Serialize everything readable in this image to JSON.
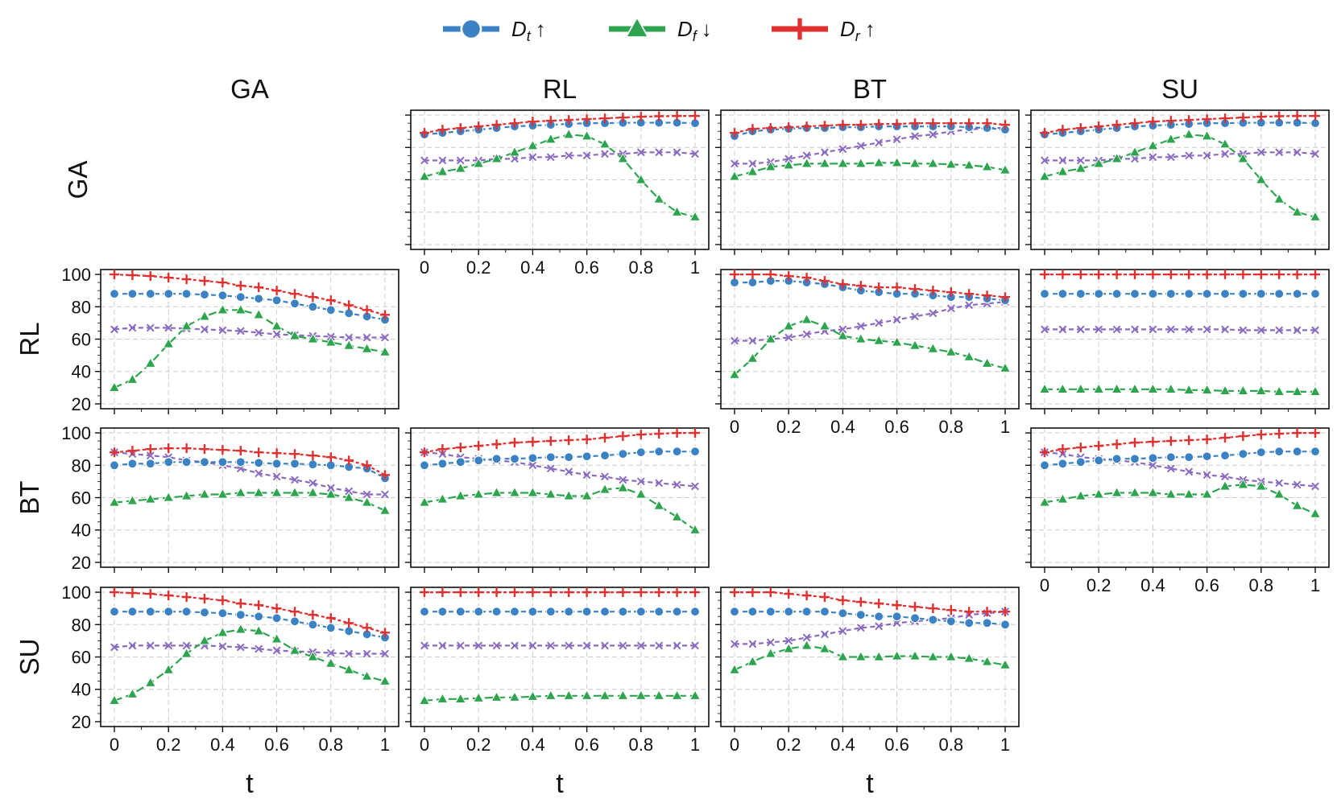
{
  "chart_data": {
    "type": "line",
    "legend": {
      "placement": "top-center",
      "entries": [
        {
          "name": "D_t",
          "base": "D",
          "sub": "t",
          "arrow": "↑",
          "color": "#3b82c4",
          "marker": "circle"
        },
        {
          "name": "D_f",
          "base": "D",
          "sub": "f",
          "arrow": "↓",
          "color": "#2ea44f",
          "marker": "triangle"
        },
        {
          "name": "D_r",
          "base": "D",
          "sub": "r",
          "arrow": "↑",
          "color": "#e03030",
          "marker": "plus"
        }
      ]
    },
    "extra_series": {
      "name": "unlabeled",
      "color": "#8a6bbf",
      "marker": "x"
    },
    "columns": [
      "GA",
      "RL",
      "BT",
      "SU"
    ],
    "rows": [
      "GA",
      "RL",
      "BT",
      "SU"
    ],
    "xlabel": "t",
    "x": [
      0,
      0.0667,
      0.1333,
      0.2,
      0.2667,
      0.3333,
      0.4,
      0.4667,
      0.5333,
      0.6,
      0.6667,
      0.7333,
      0.8,
      0.8667,
      0.9333,
      1
    ],
    "xticks": [
      0,
      0.2,
      0.4,
      0.6,
      0.8,
      1
    ],
    "xtick_labels": [
      "0",
      "0.2",
      "0.4",
      "0.6",
      "0.8",
      "1"
    ],
    "ylim": [
      20,
      100
    ],
    "yticks": [
      20,
      40,
      60,
      80,
      100
    ],
    "ytick_labels": [
      "20",
      "40",
      "60",
      "80",
      "100"
    ],
    "grid": true,
    "panels": [
      {
        "row": 0,
        "col": 1,
        "D_t": [
          88,
          89,
          90,
          91,
          92,
          93,
          93.5,
          94,
          94.5,
          95,
          95,
          95.2,
          95.3,
          95.3,
          95.3,
          95
        ],
        "D_f": [
          62,
          65,
          67,
          70,
          73,
          77,
          81,
          85,
          88,
          87,
          82,
          73,
          60,
          48,
          40,
          37
        ],
        "D_r": [
          89,
          91,
          92,
          93,
          94,
          95,
          96,
          96.5,
          97,
          97.5,
          98,
          98.5,
          99,
          99.3,
          99.5,
          99.5
        ],
        "X": [
          72,
          72,
          72,
          72,
          73,
          73,
          74,
          74,
          75,
          75,
          76,
          76,
          77,
          77,
          77,
          76
        ]
      },
      {
        "row": 0,
        "col": 2,
        "D_t": [
          87,
          90,
          91,
          91.5,
          92,
          92,
          92.5,
          92.5,
          93,
          93,
          93,
          93,
          93,
          92.5,
          92,
          91
        ],
        "D_f": [
          62,
          65,
          68,
          69,
          70,
          70,
          70,
          70,
          70.5,
          70.5,
          70,
          70,
          69.5,
          69,
          68,
          66
        ],
        "D_r": [
          89,
          91.5,
          92,
          92.5,
          93,
          93.5,
          94,
          94,
          94.5,
          94.5,
          95,
          95,
          95,
          95,
          95,
          94
        ],
        "X": [
          70,
          70,
          71,
          73,
          75,
          77,
          79,
          81,
          83,
          85,
          87,
          88,
          90,
          91,
          92,
          92
        ]
      },
      {
        "row": 0,
        "col": 3,
        "D_t": [
          88,
          89,
          90,
          91,
          92,
          93,
          93.5,
          94,
          94.5,
          95,
          95,
          95.2,
          95.3,
          95.3,
          95.3,
          95
        ],
        "D_f": [
          62,
          65,
          67,
          70,
          73,
          77,
          81,
          85,
          88,
          87,
          82,
          73,
          60,
          48,
          40,
          37
        ],
        "D_r": [
          89,
          91,
          92,
          93,
          94,
          95,
          96,
          96.5,
          97,
          97.5,
          98,
          98.5,
          99,
          99.3,
          99.5,
          99.5
        ],
        "X": [
          72,
          72,
          72,
          72,
          73,
          73,
          74,
          74,
          75,
          75,
          76,
          76,
          77,
          77,
          77,
          76
        ]
      },
      {
        "row": 1,
        "col": 0,
        "D_t": [
          88,
          88,
          88,
          88,
          88,
          87.5,
          87,
          86,
          85,
          84,
          82,
          80,
          78,
          76,
          74,
          72
        ],
        "D_f": [
          30,
          35,
          45,
          57,
          68,
          74,
          78,
          78,
          75,
          68,
          62,
          60,
          58,
          56,
          54,
          52
        ],
        "D_r": [
          100,
          99.5,
          99,
          98,
          97,
          96,
          95,
          93,
          92,
          90,
          88,
          86,
          84,
          81,
          78,
          75
        ],
        "X": [
          66,
          67,
          67,
          67,
          66.5,
          66,
          65.5,
          65,
          64,
          63,
          62.5,
          62,
          61.5,
          61,
          61,
          61
        ]
      },
      {
        "row": 1,
        "col": 2,
        "D_t": [
          95,
          95,
          96,
          96,
          95,
          94,
          92,
          90,
          89,
          88,
          88,
          87,
          86,
          86,
          85,
          84
        ],
        "D_f": [
          38,
          48,
          60,
          68,
          72,
          68,
          62,
          60,
          59,
          58,
          56,
          54,
          52,
          49,
          45,
          42
        ],
        "D_r": [
          100,
          100,
          100,
          99,
          98,
          96,
          94,
          93,
          92,
          92,
          91,
          90,
          89,
          88,
          87,
          86
        ],
        "X": [
          59,
          59,
          60,
          61,
          63,
          65,
          66,
          68,
          70,
          72,
          74,
          76,
          79,
          81,
          82,
          83
        ]
      },
      {
        "row": 1,
        "col": 3,
        "D_t": [
          88,
          88,
          88,
          88,
          88,
          88,
          88,
          88,
          88,
          88,
          88,
          88,
          88,
          88,
          88,
          88
        ],
        "D_f": [
          29,
          29,
          29,
          29,
          29,
          29,
          29,
          29,
          28.5,
          28.5,
          28,
          28,
          28,
          27.5,
          27.5,
          27.5
        ],
        "D_r": [
          100,
          100,
          100,
          100,
          100,
          100,
          100,
          100,
          100,
          100,
          100,
          100,
          100,
          100,
          100,
          100
        ],
        "X": [
          66,
          66,
          66,
          66,
          66,
          66,
          66,
          66,
          66,
          66,
          66,
          65.5,
          65.5,
          65.5,
          65.5,
          65.5
        ]
      },
      {
        "row": 2,
        "col": 0,
        "D_t": [
          80,
          81,
          81,
          82,
          82,
          82,
          82,
          82,
          81.5,
          81,
          81,
          80.5,
          80,
          79,
          78,
          72
        ],
        "D_f": [
          57,
          58,
          59,
          60,
          61,
          62,
          62,
          63,
          63,
          63,
          63,
          63,
          62,
          60,
          57,
          52
        ],
        "D_r": [
          88,
          89,
          90,
          90.5,
          90.5,
          90,
          89.5,
          89,
          88,
          87.5,
          87,
          86,
          85,
          83,
          80,
          74
        ],
        "X": [
          88,
          87,
          86,
          85,
          83,
          82,
          80,
          78,
          75,
          73,
          71,
          69,
          66,
          64,
          62,
          62
        ]
      },
      {
        "row": 2,
        "col": 1,
        "D_t": [
          80,
          81,
          82,
          83,
          84,
          84,
          84.5,
          85,
          85,
          85.5,
          86,
          87,
          88,
          88.5,
          88.5,
          88.5
        ],
        "D_f": [
          57,
          59,
          61,
          62,
          63,
          63,
          63,
          62,
          61,
          61,
          65,
          66,
          62,
          55,
          48,
          40
        ],
        "D_r": [
          88,
          90,
          91,
          92,
          93,
          94,
          94.5,
          95,
          95.5,
          96,
          97,
          98,
          99,
          99.5,
          100,
          100
        ],
        "X": [
          88,
          87,
          85,
          84,
          83,
          82,
          80,
          78,
          76,
          74,
          73,
          71,
          70,
          69,
          68,
          67
        ]
      },
      {
        "row": 2,
        "col": 3,
        "D_t": [
          80,
          81,
          82,
          83,
          84,
          84,
          84.5,
          85,
          85,
          85.5,
          86,
          87,
          88,
          88.5,
          88.5,
          88.5
        ],
        "D_f": [
          57,
          59,
          61,
          62,
          63,
          63,
          63,
          62,
          62,
          62,
          67,
          68,
          67,
          62,
          55,
          50
        ],
        "D_r": [
          88,
          90,
          91,
          92,
          93,
          94,
          94.5,
          95,
          95.5,
          96,
          97,
          98,
          99,
          99.5,
          100,
          100
        ],
        "X": [
          88,
          87,
          85,
          84,
          83,
          82,
          80,
          78,
          76,
          74,
          73,
          71,
          70,
          69,
          68,
          67
        ]
      },
      {
        "row": 3,
        "col": 0,
        "D_t": [
          88,
          88,
          88,
          88,
          88,
          87.5,
          87,
          86,
          85,
          84,
          82,
          80,
          78,
          76,
          74,
          72
        ],
        "D_f": [
          33,
          37,
          44,
          52,
          62,
          70,
          75,
          77,
          76,
          71,
          64,
          60,
          56,
          52,
          48,
          45
        ],
        "D_r": [
          100,
          99.5,
          99,
          98,
          97,
          96,
          95,
          93,
          92,
          90,
          88,
          86,
          84,
          81,
          78,
          75
        ],
        "X": [
          66,
          67,
          67,
          67,
          67,
          67,
          66.5,
          66,
          65,
          64,
          63.5,
          63,
          62.5,
          62,
          62,
          62
        ]
      },
      {
        "row": 3,
        "col": 1,
        "D_t": [
          88,
          88,
          88,
          88,
          88,
          88,
          88,
          88,
          88,
          88,
          88,
          88,
          88,
          88,
          88,
          88
        ],
        "D_f": [
          33,
          34,
          34,
          34.5,
          35,
          35,
          35.5,
          36,
          36,
          36,
          36,
          36,
          36,
          36,
          36,
          36
        ],
        "D_r": [
          100,
          100,
          100,
          100,
          100,
          100,
          100,
          100,
          100,
          100,
          100,
          100,
          100,
          100,
          100,
          100
        ],
        "X": [
          67,
          67,
          67,
          67,
          67,
          67,
          67,
          67,
          67,
          67,
          67,
          67,
          67,
          67,
          67,
          67
        ]
      },
      {
        "row": 3,
        "col": 2,
        "D_t": [
          88,
          88,
          88,
          88,
          88,
          88,
          87,
          86,
          85,
          85,
          84,
          83,
          82,
          81,
          81,
          80
        ],
        "D_f": [
          52,
          57,
          62,
          65,
          67,
          65,
          60,
          60,
          60,
          60.5,
          60.5,
          60,
          60,
          59,
          57,
          55
        ],
        "D_r": [
          100,
          100,
          100,
          99,
          98,
          97,
          95,
          94,
          93,
          92,
          91,
          90,
          89,
          88,
          88,
          88
        ],
        "X": [
          68,
          68,
          69,
          70,
          72,
          74,
          76,
          78,
          79,
          81,
          82,
          83,
          84,
          86,
          87,
          88
        ]
      }
    ]
  }
}
